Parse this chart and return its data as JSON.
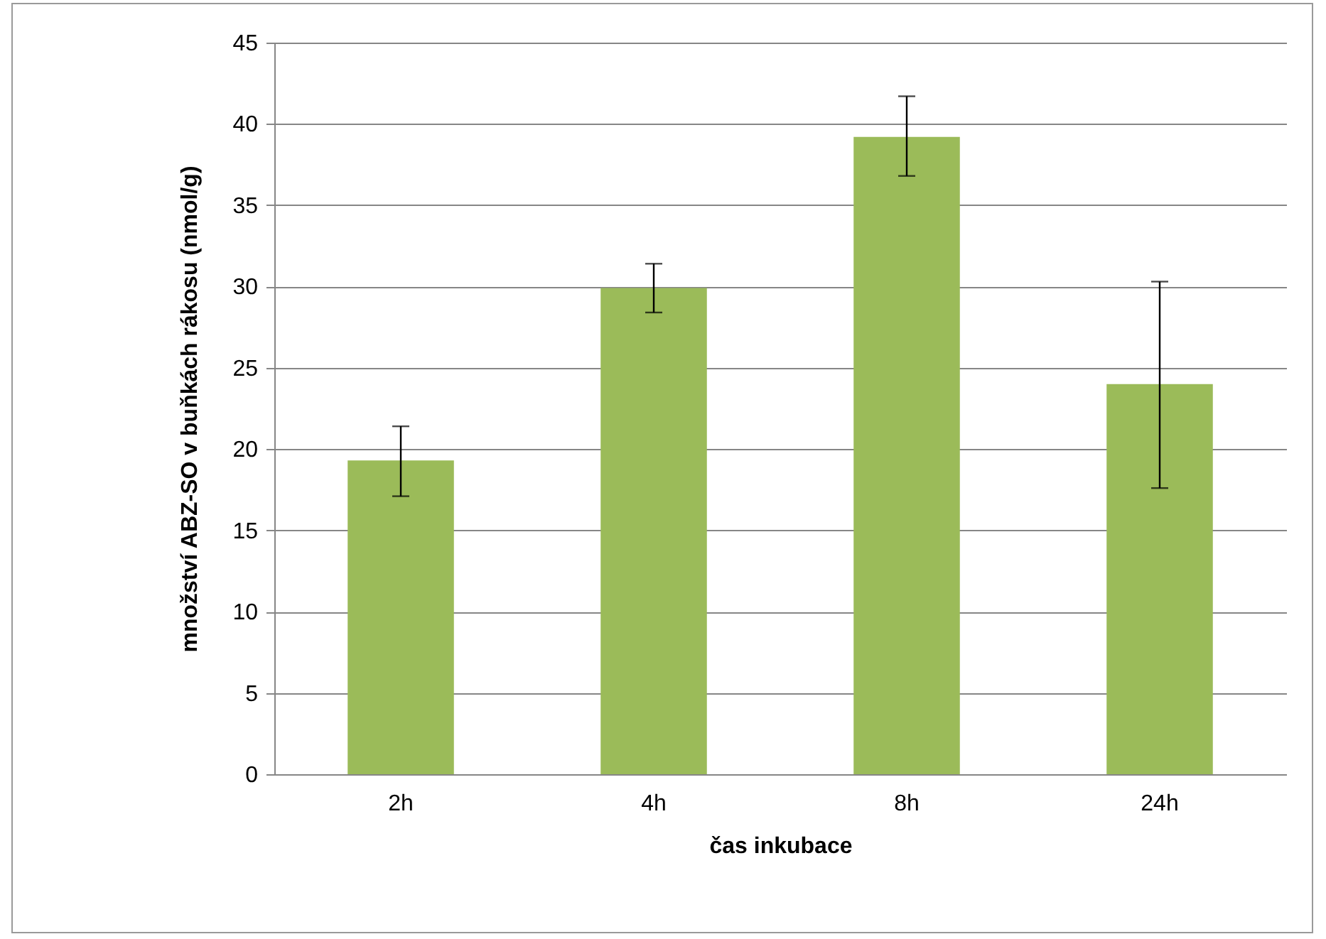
{
  "chart_data": {
    "type": "bar",
    "xlabel": "čas inkubace",
    "ylabel": "množství ABZ-SO v buňkách rákosu (nmol/g)",
    "categories": [
      "2h",
      "4h",
      "8h",
      "24h"
    ],
    "values": [
      19.3,
      29.9,
      39.2,
      24.0
    ],
    "errors": [
      [
        17.1,
        21.4
      ],
      [
        28.4,
        31.4
      ],
      [
        36.8,
        41.7
      ],
      [
        17.6,
        30.3
      ]
    ],
    "color": "#9bbb59",
    "ylim": [
      0,
      45
    ],
    "yticks": [
      0,
      5,
      10,
      15,
      20,
      25,
      30,
      35,
      40,
      45
    ],
    "grid": "y"
  }
}
